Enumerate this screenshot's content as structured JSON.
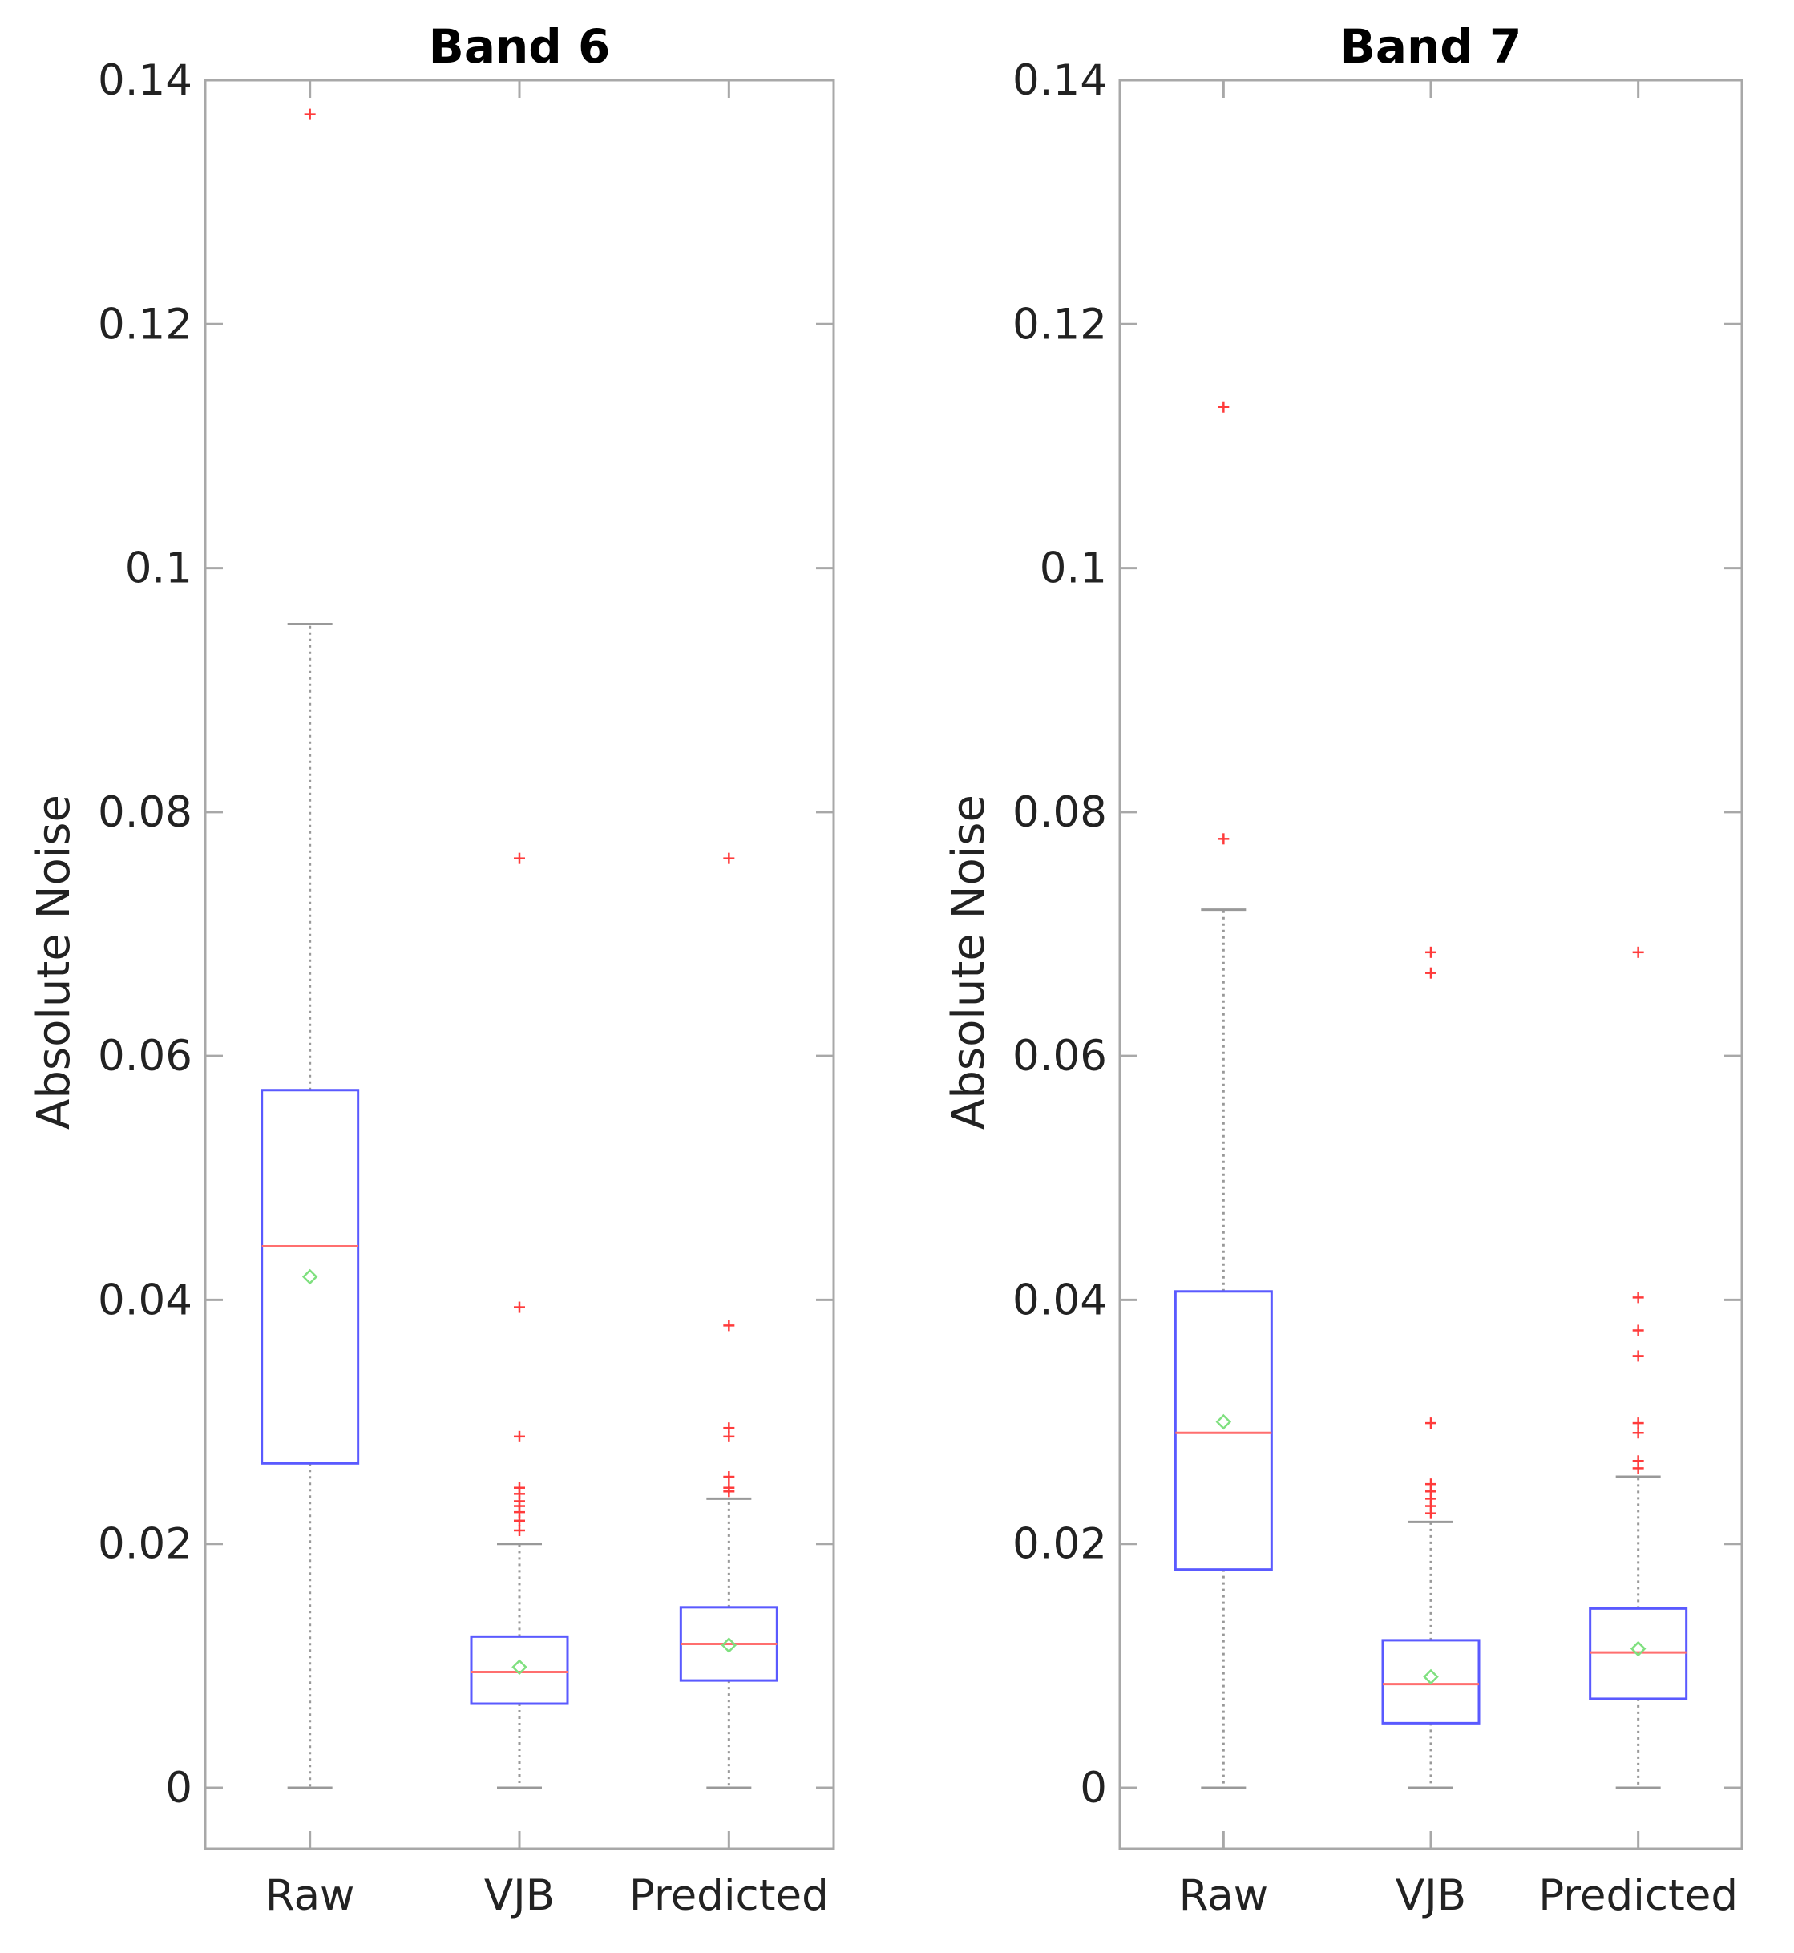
{
  "figure": {
    "ylabel": "Absolute Noise"
  },
  "colors": {
    "box": "#5a5aff",
    "median": "#ff6f6f",
    "mean": "#7fe07f",
    "outlier": "#ff3b3b",
    "whisker": "#999999",
    "axis": "#a8a8a8",
    "text": "#222222"
  },
  "chart_data": [
    {
      "type": "box",
      "title": "Band 6",
      "ylabel": "Absolute Noise",
      "xlabel": "",
      "ylim": [
        -0.005,
        0.14
      ],
      "yticks": [
        0,
        0.02,
        0.04,
        0.06,
        0.08,
        0.1,
        0.12,
        0.14
      ],
      "ytick_labels": [
        "0",
        "0.02",
        "0.04",
        "0.06",
        "0.08",
        "0.1",
        "0.12",
        "0.14"
      ],
      "categories": [
        "Raw",
        "VJB",
        "Predicted"
      ],
      "boxes": [
        {
          "category": "Raw",
          "whisker_low": 0.0,
          "q1": 0.0266,
          "median": 0.0444,
          "q3": 0.0572,
          "whisker_high": 0.0954,
          "mean": 0.0419,
          "outliers": [
            0.1372
          ]
        },
        {
          "category": "VJB",
          "whisker_low": 0.0,
          "q1": 0.0069,
          "median": 0.0095,
          "q3": 0.0124,
          "whisker_high": 0.02,
          "mean": 0.0099,
          "outliers": [
            0.0762,
            0.0394,
            0.0288,
            0.0246,
            0.0241,
            0.0235,
            0.0231,
            0.0226,
            0.0219,
            0.0211
          ]
        },
        {
          "category": "Predicted",
          "whisker_low": 0.0,
          "q1": 0.0088,
          "median": 0.0118,
          "q3": 0.0148,
          "whisker_high": 0.0237,
          "mean": 0.0117,
          "outliers": [
            0.0762,
            0.0379,
            0.0295,
            0.0288,
            0.0255,
            0.0246,
            0.0243
          ]
        }
      ]
    },
    {
      "type": "box",
      "title": "Band 7",
      "ylabel": "Absolute Noise",
      "xlabel": "",
      "ylim": [
        -0.005,
        0.14
      ],
      "yticks": [
        0,
        0.02,
        0.04,
        0.06,
        0.08,
        0.1,
        0.12,
        0.14
      ],
      "ytick_labels": [
        "0",
        "0.02",
        "0.04",
        "0.06",
        "0.08",
        "0.1",
        "0.12",
        "0.14"
      ],
      "categories": [
        "Raw",
        "VJB",
        "Predicted"
      ],
      "boxes": [
        {
          "category": "Raw",
          "whisker_low": 0.0,
          "q1": 0.0179,
          "median": 0.0291,
          "q3": 0.0407,
          "whisker_high": 0.072,
          "mean": 0.03,
          "outliers": [
            0.1132,
            0.0778
          ]
        },
        {
          "category": "VJB",
          "whisker_low": 0.0,
          "q1": 0.0053,
          "median": 0.0085,
          "q3": 0.0121,
          "whisker_high": 0.0218,
          "mean": 0.0091,
          "outliers": [
            0.0685,
            0.0668,
            0.0299,
            0.0249,
            0.0243,
            0.0237,
            0.0231,
            0.0225
          ]
        },
        {
          "category": "Predicted",
          "whisker_low": 0.0,
          "q1": 0.0073,
          "median": 0.0111,
          "q3": 0.0147,
          "whisker_high": 0.0255,
          "mean": 0.0114,
          "outliers": [
            0.0685,
            0.0402,
            0.0375,
            0.0354,
            0.0299,
            0.0291,
            0.0268,
            0.0262
          ]
        }
      ]
    }
  ]
}
